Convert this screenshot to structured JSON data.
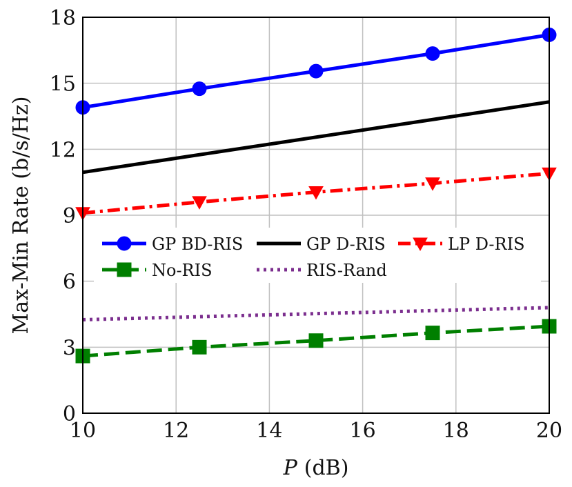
{
  "chart_data": {
    "type": "line",
    "xlabel_var": "P",
    "xlabel_unit": "(dB)",
    "ylabel": "Max-Min Rate (b/s/Hz)",
    "xlim": [
      10,
      20
    ],
    "ylim": [
      0,
      18
    ],
    "xticks": [
      10,
      12,
      14,
      16,
      18,
      20
    ],
    "yticks": [
      0,
      3,
      6,
      9,
      12,
      15,
      18
    ],
    "grid": true,
    "legend_placement": "center",
    "series": [
      {
        "name": "GP BD-RIS",
        "color": "#0000ff",
        "style": "solid",
        "marker": "circle",
        "x": [
          10,
          12.5,
          15,
          17.5,
          20
        ],
        "y": [
          13.9,
          14.75,
          15.55,
          16.35,
          17.2
        ]
      },
      {
        "name": "GP D-RIS",
        "color": "#000000",
        "style": "solid",
        "marker": "none",
        "x": [
          10,
          20
        ],
        "y": [
          10.95,
          14.15
        ]
      },
      {
        "name": "LP D-RIS",
        "color": "#ff0000",
        "style": "dashdot",
        "marker": "triangle-down",
        "x": [
          10,
          12.5,
          15,
          17.5,
          20
        ],
        "y": [
          9.1,
          9.6,
          10.05,
          10.45,
          10.9
        ]
      },
      {
        "name": "No-RIS",
        "color": "#007f00",
        "style": "dashed",
        "marker": "square",
        "x": [
          10,
          12.5,
          15,
          17.5,
          20
        ],
        "y": [
          2.6,
          3.0,
          3.3,
          3.65,
          3.95
        ]
      },
      {
        "name": "RIS-Rand",
        "color": "#7b2e8e",
        "style": "dotted",
        "marker": "none",
        "x": [
          10,
          20
        ],
        "y": [
          4.25,
          4.8
        ]
      }
    ]
  }
}
